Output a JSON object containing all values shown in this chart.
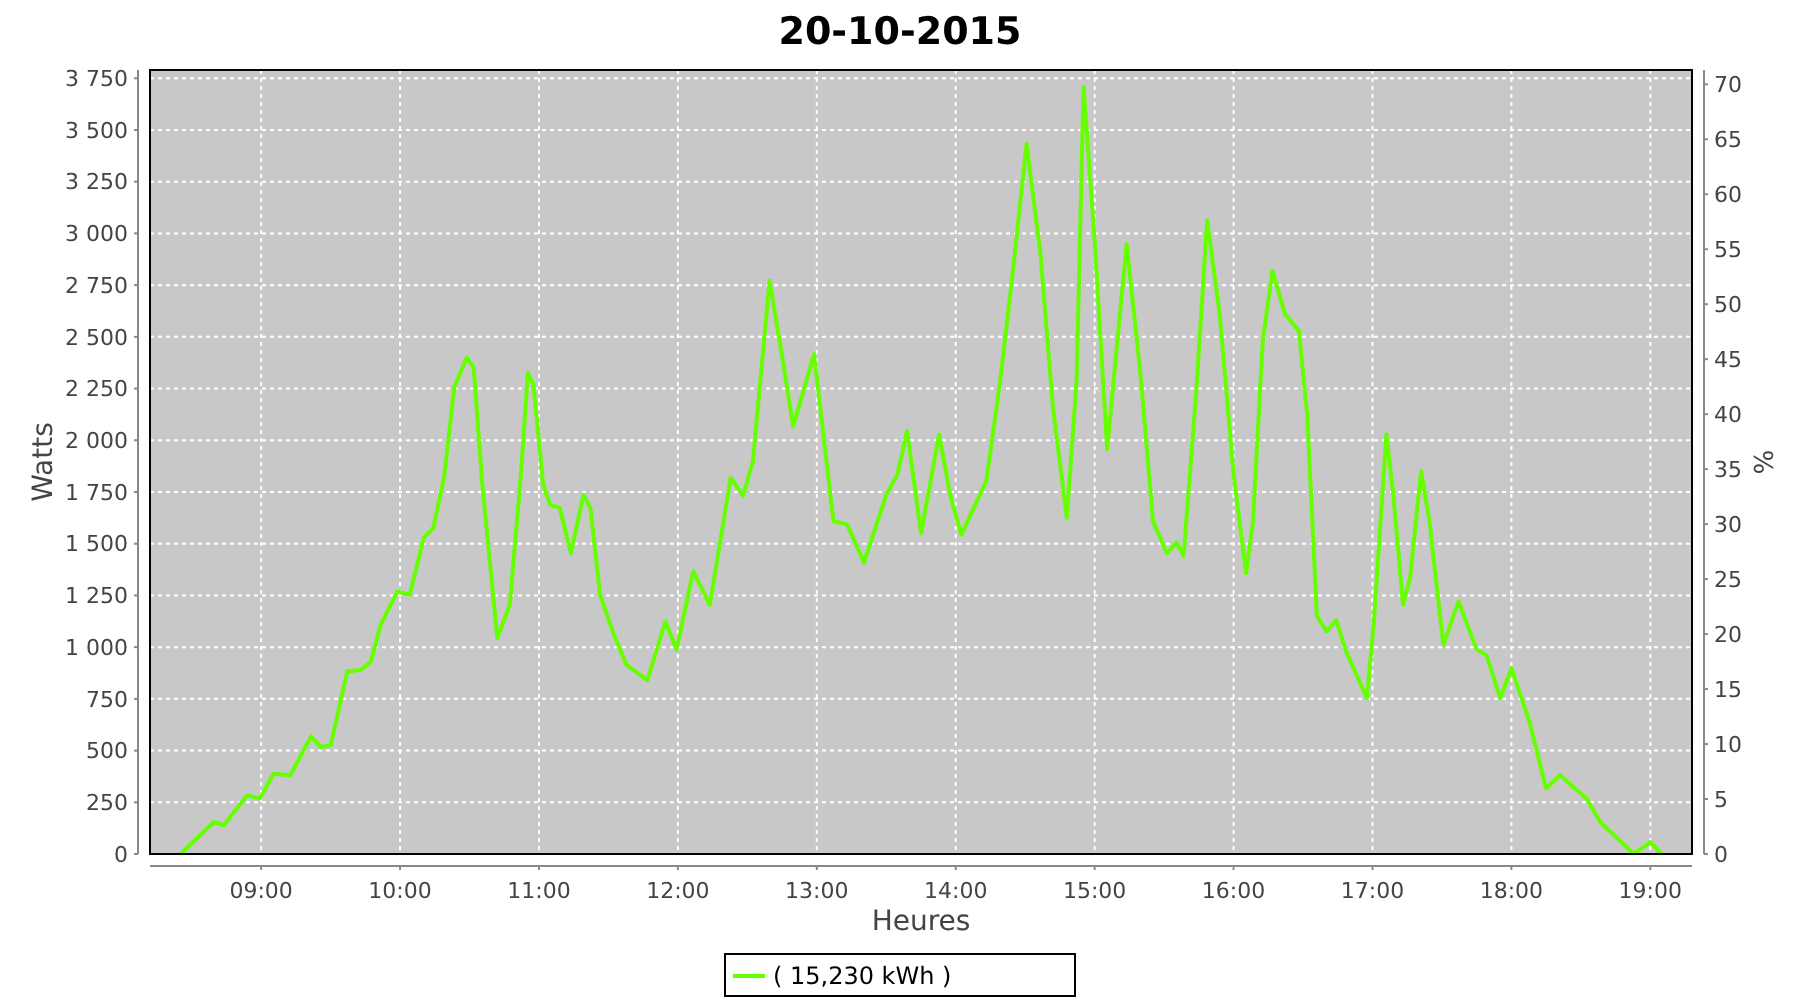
{
  "chart_data": {
    "type": "line",
    "title": "20-10-2015",
    "xlabel": "Heures",
    "ylabel": "Watts",
    "y2label": "%",
    "xlim": [
      8.2,
      19.3
    ],
    "xticks": [
      {
        "value": 9,
        "label": "09:00"
      },
      {
        "value": 10,
        "label": "10:00"
      },
      {
        "value": 11,
        "label": "11:00"
      },
      {
        "value": 12,
        "label": "12:00"
      },
      {
        "value": 13,
        "label": "13:00"
      },
      {
        "value": 14,
        "label": "14:00"
      },
      {
        "value": 15,
        "label": "15:00"
      },
      {
        "value": 16,
        "label": "16:00"
      },
      {
        "value": 17,
        "label": "17:00"
      },
      {
        "value": 18,
        "label": "18:00"
      },
      {
        "value": 19,
        "label": "19:00"
      }
    ],
    "ylim": [
      0,
      3790
    ],
    "yticks": [
      0,
      250,
      500,
      750,
      {
        "value": 1000,
        "label": "1 000"
      },
      {
        "value": 1250,
        "label": "1 250"
      },
      {
        "value": 1500,
        "label": "1 500"
      },
      {
        "value": 1750,
        "label": "1 750"
      },
      {
        "value": 2000,
        "label": "2 000"
      },
      {
        "value": 2250,
        "label": "2 250"
      },
      {
        "value": 2500,
        "label": "2 500"
      },
      {
        "value": 2750,
        "label": "2 750"
      },
      {
        "value": 3000,
        "label": "3 000"
      },
      {
        "value": 3250,
        "label": "3 250"
      },
      {
        "value": 3500,
        "label": "3 500"
      },
      {
        "value": 3750,
        "label": "3 750"
      }
    ],
    "y2lim": [
      0,
      71.3
    ],
    "y2ticks": [
      0,
      5,
      10,
      15,
      20,
      25,
      30,
      35,
      40,
      45,
      50,
      55,
      60,
      65,
      70
    ],
    "grid": true,
    "legend": "bottom",
    "marker": "none",
    "line_style": "solid",
    "series": [
      {
        "name": "( 15,230 kWh )",
        "color": "#66ff00",
        "x": [
          8.42,
          8.66,
          8.73,
          8.9,
          8.99,
          9.09,
          9.21,
          9.36,
          9.43,
          9.5,
          9.62,
          9.72,
          9.79,
          9.86,
          9.98,
          10.07,
          10.17,
          10.24,
          10.32,
          10.39,
          10.48,
          10.53,
          10.59,
          10.7,
          10.79,
          10.87,
          10.92,
          10.96,
          11.03,
          11.08,
          11.15,
          11.23,
          11.32,
          11.37,
          11.44,
          11.54,
          11.63,
          11.78,
          11.91,
          11.99,
          12.11,
          12.23,
          12.38,
          12.47,
          12.54,
          12.66,
          12.76,
          12.83,
          12.98,
          13.12,
          13.22,
          13.34,
          13.5,
          13.58,
          13.65,
          13.75,
          13.88,
          13.96,
          14.04,
          14.22,
          14.32,
          14.42,
          14.51,
          14.61,
          14.7,
          14.8,
          14.87,
          14.92,
          15,
          15.09,
          15.23,
          15.33,
          15.42,
          15.52,
          15.59,
          15.64,
          15.73,
          15.81,
          15.9,
          16,
          16.09,
          16.14,
          16.21,
          16.28,
          16.37,
          16.47,
          16.53,
          16.6,
          16.67,
          16.74,
          16.81,
          16.96,
          17.01,
          17.1,
          17.15,
          17.22,
          17.27,
          17.35,
          17.41,
          17.51,
          17.62,
          17.75,
          17.82,
          17.92,
          18,
          18.13,
          18.25,
          18.35,
          18.54,
          18.64,
          18.88,
          19,
          19.08
        ],
        "values": [
          0,
          155,
          139,
          284,
          268,
          388,
          381,
          569,
          517,
          526,
          882,
          891,
          930,
          1108,
          1269,
          1253,
          1528,
          1577,
          1834,
          2255,
          2400,
          2352,
          1802,
          1044,
          1205,
          1834,
          2326,
          2270,
          1786,
          1689,
          1673,
          1453,
          1737,
          1673,
          1253,
          1059,
          914,
          840,
          1124,
          988,
          1366,
          1205,
          1819,
          1732,
          1899,
          2771,
          2367,
          2067,
          2416,
          1609,
          1592,
          1408,
          1737,
          1834,
          2045,
          1550,
          2028,
          1737,
          1544,
          1802,
          2287,
          2868,
          3433,
          2900,
          2158,
          1625,
          2287,
          3708,
          2965,
          1957,
          2949,
          2319,
          1609,
          1453,
          1505,
          1441,
          2222,
          3062,
          2610,
          1834,
          1357,
          1609,
          2481,
          2820,
          2610,
          2529,
          2125,
          1150,
          1076,
          1131,
          979,
          753,
          1124,
          2028,
          1737,
          1205,
          1334,
          1851,
          1609,
          1011,
          1221,
          988,
          962,
          753,
          898,
          640,
          317,
          381,
          268,
          155,
          0,
          58,
          0
        ]
      }
    ]
  }
}
